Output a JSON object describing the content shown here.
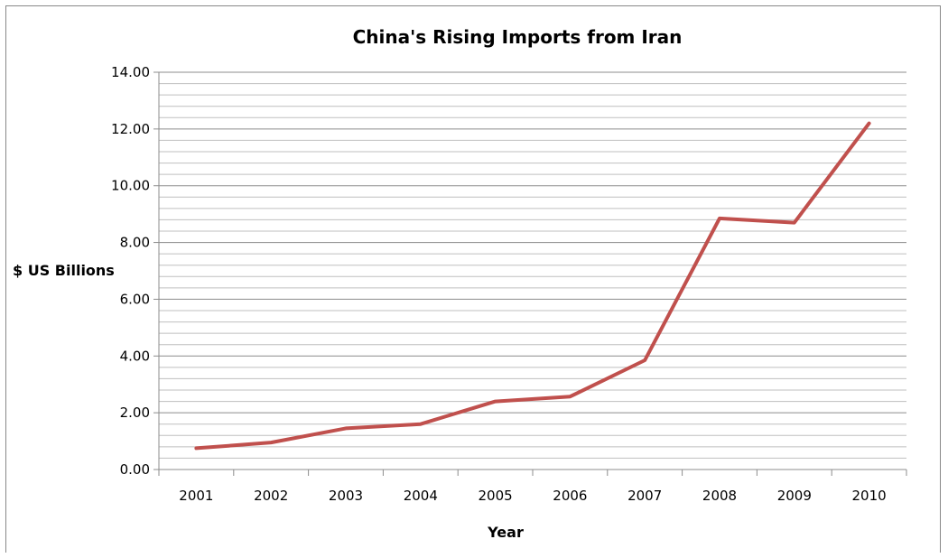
{
  "chart_data": {
    "type": "line",
    "title": "China's Rising Imports from Iran",
    "xlabel": "Year",
    "ylabel": "$ US Billions",
    "categories": [
      "2001",
      "2002",
      "2003",
      "2004",
      "2005",
      "2006",
      "2007",
      "2008",
      "2009",
      "2010"
    ],
    "y_tick_labels": [
      "0.00",
      "2.00",
      "4.00",
      "6.00",
      "8.00",
      "10.00",
      "12.00",
      "14.00"
    ],
    "series": [
      {
        "values": [
          0.75,
          0.95,
          1.45,
          1.6,
          2.4,
          2.57,
          3.85,
          8.85,
          8.7,
          12.2
        ],
        "color": "#c0504d"
      }
    ],
    "ylim": [
      0,
      14
    ],
    "grid": "horizontal major and minor",
    "legend": "none"
  }
}
